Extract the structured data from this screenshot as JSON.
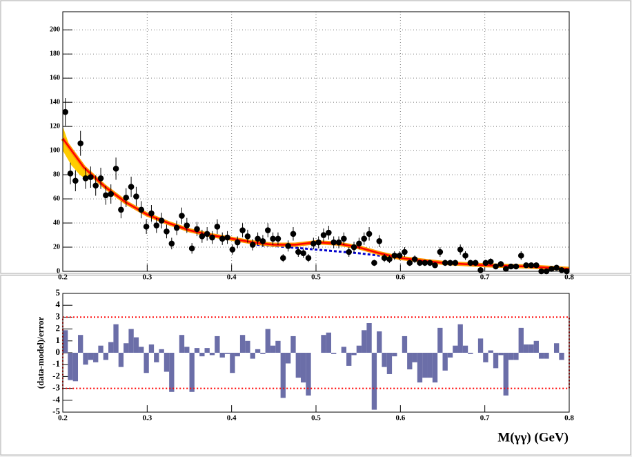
{
  "chart_data": [
    {
      "type": "scatter",
      "x": [
        0.203,
        0.209,
        0.215,
        0.221,
        0.227,
        0.233,
        0.239,
        0.245,
        0.251,
        0.257,
        0.263,
        0.269,
        0.275,
        0.281,
        0.287,
        0.293,
        0.299,
        0.305,
        0.311,
        0.317,
        0.323,
        0.329,
        0.335,
        0.341,
        0.347,
        0.353,
        0.359,
        0.365,
        0.371,
        0.377,
        0.383,
        0.389,
        0.395,
        0.401,
        0.407,
        0.413,
        0.419,
        0.425,
        0.431,
        0.437,
        0.443,
        0.449,
        0.455,
        0.461,
        0.467,
        0.473,
        0.479,
        0.485,
        0.491,
        0.497,
        0.503,
        0.509,
        0.515,
        0.521,
        0.527,
        0.533,
        0.539,
        0.545,
        0.551,
        0.557,
        0.563,
        0.569,
        0.575,
        0.581,
        0.587,
        0.593,
        0.599,
        0.605,
        0.611,
        0.617,
        0.623,
        0.629,
        0.635,
        0.641,
        0.647,
        0.653,
        0.659,
        0.665,
        0.671,
        0.677,
        0.683,
        0.689,
        0.695,
        0.701,
        0.707,
        0.713,
        0.719,
        0.725,
        0.731,
        0.737,
        0.743,
        0.749,
        0.755,
        0.761,
        0.767,
        0.773,
        0.779,
        0.785,
        0.791,
        0.797
      ],
      "values": [
        132,
        81,
        75,
        106,
        77,
        78,
        71,
        77,
        63,
        64,
        85,
        51,
        61,
        70,
        62,
        51,
        37,
        48,
        38,
        42,
        33,
        23,
        36,
        46,
        38,
        19,
        35,
        29,
        31,
        28,
        37,
        27,
        28,
        18,
        24,
        34,
        29,
        22,
        27,
        25,
        34,
        27,
        27,
        11,
        21,
        31,
        16,
        15,
        11,
        23,
        24,
        30,
        32,
        24,
        24,
        27,
        16,
        20,
        23,
        27,
        31,
        7,
        25,
        11,
        10,
        13,
        13,
        16,
        7,
        10,
        7,
        7,
        7,
        5,
        16,
        7,
        7,
        7,
        18,
        13,
        7,
        7,
        1,
        7,
        8,
        4,
        6,
        2,
        4,
        4,
        13,
        5,
        5,
        5,
        0,
        0,
        2,
        3,
        1,
        0
      ],
      "errors": [
        11.5,
        9,
        8.7,
        10.3,
        8.8,
        8.8,
        8.4,
        8.8,
        7.9,
        8,
        9.2,
        7.1,
        7.8,
        8.4,
        7.9,
        7.1,
        6.1,
        6.9,
        6.2,
        6.5,
        5.7,
        4.8,
        6,
        6.8,
        6.2,
        4.4,
        5.9,
        5.4,
        5.6,
        5.3,
        6.1,
        5.2,
        5.3,
        4.2,
        4.9,
        5.8,
        5.4,
        4.7,
        5.2,
        5,
        5.8,
        5.2,
        5.2,
        3.3,
        4.6,
        5.6,
        4,
        3.9,
        3.3,
        4.8,
        4.9,
        5.5,
        5.7,
        4.9,
        4.9,
        5.2,
        4,
        4.5,
        4.8,
        5.2,
        5.6,
        2.6,
        5,
        3.3,
        3.2,
        3.6,
        3.6,
        4,
        2.6,
        3.2,
        2.6,
        2.6,
        2.6,
        2.2,
        4,
        2.6,
        2.6,
        2.6,
        4.2,
        3.6,
        2.6,
        2.6,
        1,
        2.6,
        2.8,
        2,
        2.4,
        1.4,
        2,
        2,
        3.6,
        2.2,
        2.2,
        2.2,
        1,
        1,
        1.4,
        1.7,
        1,
        1
      ],
      "color": "#000000",
      "xlim": [
        0.2,
        0.8
      ],
      "xticks": [
        0.2,
        0.3,
        0.4,
        0.5,
        0.6,
        0.7,
        0.8
      ],
      "ylim": [
        0,
        215
      ],
      "yticks": [
        0,
        20,
        40,
        60,
        80,
        100,
        120,
        140,
        160,
        180,
        200
      ],
      "grid": true,
      "model": {
        "x": [
          0.2,
          0.225,
          0.25,
          0.275,
          0.3,
          0.325,
          0.35,
          0.375,
          0.4,
          0.425,
          0.45,
          0.475,
          0.5,
          0.525,
          0.55,
          0.575,
          0.6,
          0.65,
          0.7,
          0.75,
          0.8
        ],
        "values": [
          110,
          86,
          70,
          57,
          47,
          40,
          34,
          30,
          27,
          24,
          22,
          22,
          24,
          23,
          20,
          15,
          11,
          7,
          5,
          4,
          2
        ],
        "color": "#ff0000"
      },
      "background": {
        "x": [
          0.43,
          0.45,
          0.5,
          0.55,
          0.6
        ],
        "values": [
          22,
          21,
          18,
          15,
          11
        ],
        "color": "#0000cc"
      },
      "band": {
        "x": [
          0.2,
          0.21,
          0.22,
          0.23
        ],
        "low": [
          100,
          88,
          80,
          75
        ],
        "high": [
          120,
          100,
          88,
          80
        ],
        "color": "#ffcc00"
      }
    },
    {
      "type": "bar",
      "ylabel": "(data-model)/error",
      "xlabel": "M(γγ) (GeV)",
      "values": [
        1.9,
        -2.3,
        -2.4,
        1.5,
        -1.0,
        -0.6,
        -0.8,
        0.6,
        -0.6,
        0.9,
        2.4,
        -1.2,
        0.8,
        2.0,
        1.3,
        0.5,
        -1.7,
        0.7,
        -0.8,
        0.3,
        -1.6,
        -3.3,
        0.0,
        1.5,
        0.5,
        -3.3,
        0.4,
        -0.3,
        0.4,
        -0.2,
        1.4,
        -0.4,
        -0.1,
        -1.7,
        -0.3,
        1.5,
        1.0,
        -0.5,
        0.3,
        -0.1,
        2.0,
        0.6,
        1.0,
        -3.8,
        -0.9,
        1.4,
        -2.1,
        -2.5,
        -3.6,
        0.0,
        0.0,
        1.5,
        1.7,
        -0.1,
        0.0,
        0.5,
        -1.1,
        -0.2,
        0.6,
        1.9,
        2.5,
        -4.8,
        1.8,
        -1.2,
        -1.8,
        -0.3,
        0.0,
        1.4,
        -1.4,
        -0.8,
        -2.5,
        -2.1,
        -2.1,
        -2.5,
        2.1,
        -1.5,
        -0.4,
        0.6,
        2.4,
        0.6,
        -0.1,
        0.0,
        1.2,
        -0.8,
        0.2,
        -1.3,
        -0.2,
        -3.6,
        -0.6,
        -0.6,
        2.1,
        0.7,
        0.7,
        1.0,
        -0.5,
        -0.5,
        0.0,
        0.8,
        -0.6,
        0.0
      ],
      "color": "#6b6ea8",
      "xlim": [
        0.2,
        0.8
      ],
      "xticks": [
        0.2,
        0.3,
        0.4,
        0.5,
        0.6,
        0.7,
        0.8
      ],
      "ylim": [
        -5,
        5
      ],
      "yticks": [
        -5,
        -4,
        -3,
        -2,
        -1,
        0,
        1,
        2,
        3,
        4,
        5
      ],
      "limits": [
        -3,
        3
      ],
      "limit_color": "#ff0000"
    }
  ]
}
